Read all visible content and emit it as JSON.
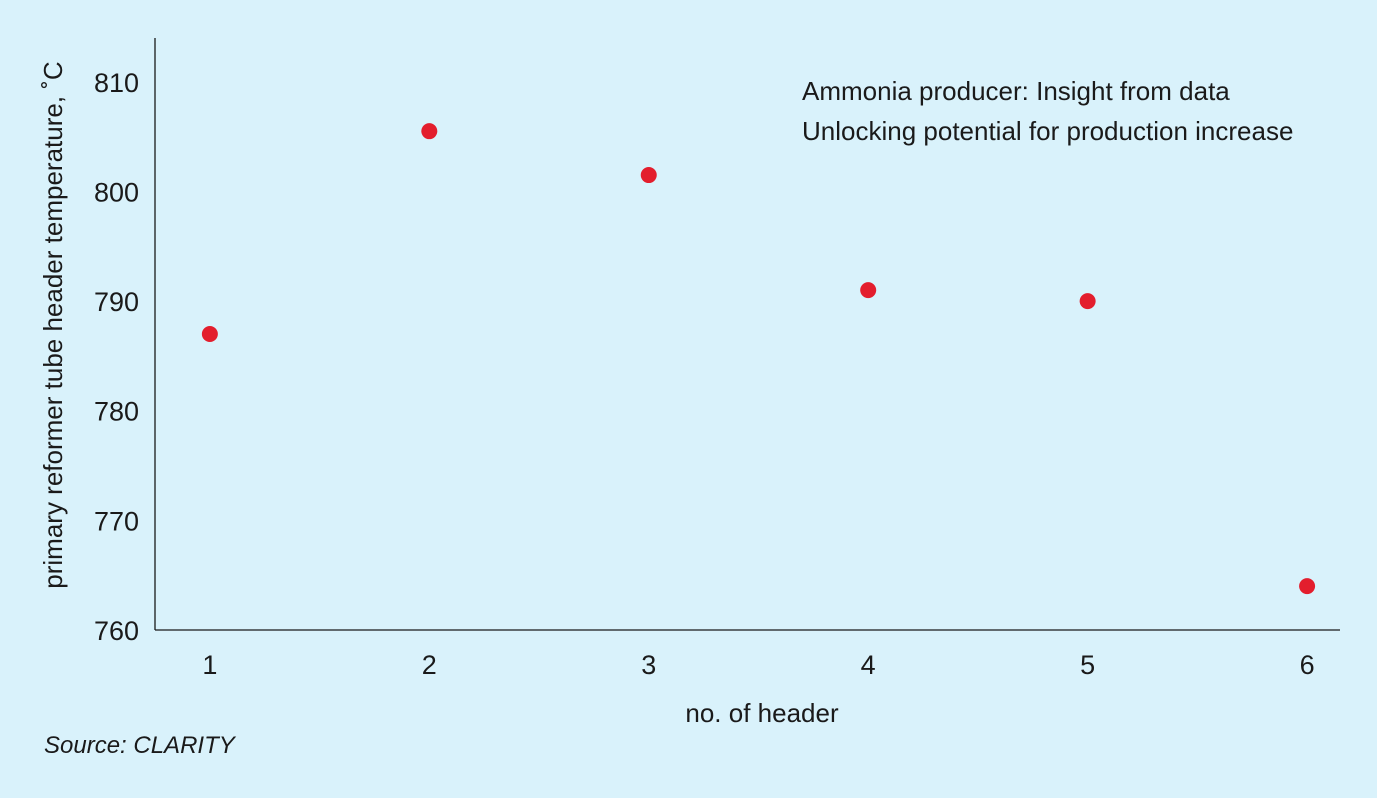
{
  "chart_data": {
    "type": "scatter",
    "xlabel": "no. of header",
    "ylabel": "primary reformer tube header temperature, ˚C",
    "x": [
      1,
      2,
      3,
      4,
      5,
      6
    ],
    "series": [
      {
        "values": [
          787,
          805.5,
          801.5,
          791,
          790,
          764
        ],
        "color": "#e31e2d"
      }
    ],
    "xlim": [
      0.75,
      6.15
    ],
    "ylim": [
      760,
      814
    ],
    "x_ticks": [
      1,
      2,
      3,
      4,
      5,
      6
    ],
    "y_ticks": [
      760,
      770,
      780,
      790,
      800,
      810
    ],
    "annotations": [
      "Ammonia producer: Insight from data",
      "Unlocking potential for production increase"
    ],
    "grid": false,
    "legend": "none",
    "source": "Source: CLARITY"
  }
}
